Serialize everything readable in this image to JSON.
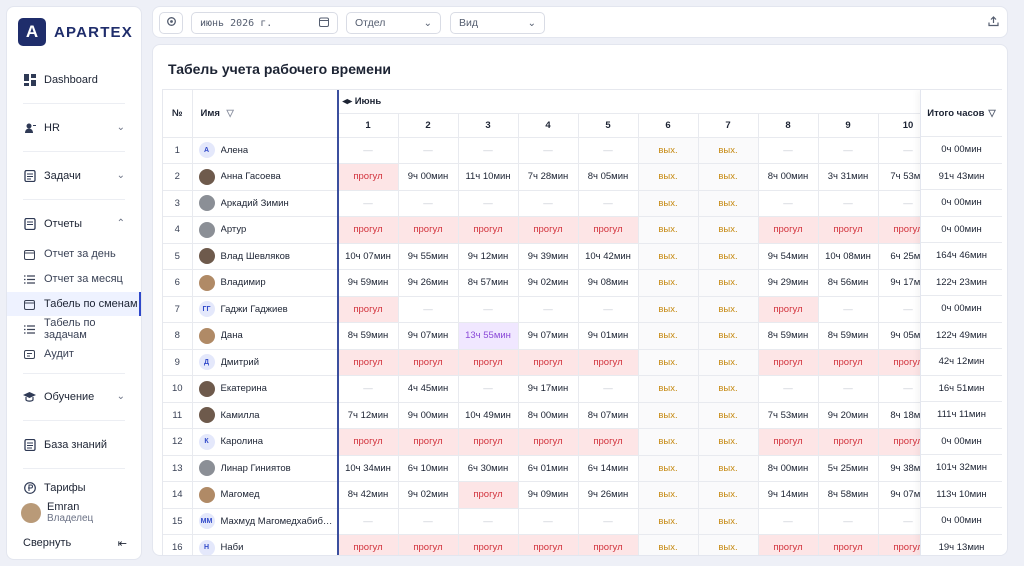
{
  "sidebar": {
    "logo": "APARTEX",
    "items": {
      "dashboard": "Dashboard",
      "hr": "HR",
      "tasks": "Задачи",
      "reports": "Отчеты",
      "report_day": "Отчет за день",
      "report_month": "Отчет за месяц",
      "timesheet_shifts": "Табель по сменам",
      "timesheet_tasks": "Табель по задачам",
      "audit": "Аудит",
      "learning": "Обучение",
      "kb": "База знаний",
      "tariffs": "Тарифы"
    },
    "user": {
      "name": "Emran",
      "role": "Владелец"
    },
    "collapse": "Свернуть"
  },
  "toolbar": {
    "date_value": "июнь 2026 г.",
    "dept_placeholder": "Отдел",
    "view_placeholder": "Вид"
  },
  "page": {
    "title": "Табель учета рабочего времени"
  },
  "table": {
    "num_header": "№",
    "name_header": "Имя",
    "month": "Июнь",
    "total_header": "Итого часов",
    "days": [
      "1",
      "2",
      "3",
      "4",
      "5",
      "6",
      "7",
      "8",
      "9",
      "10"
    ],
    "rows": [
      {
        "n": "1",
        "name": "Алена",
        "av": "А",
        "ph": "",
        "cells": [
          "—",
          "—",
          "—",
          "—",
          "—",
          "вых.",
          "вых.",
          "—",
          "—",
          "—"
        ],
        "total": "0ч 00мин"
      },
      {
        "n": "2",
        "name": "Анна Гасоева",
        "av": "",
        "ph": "ph",
        "cells": [
          "прогул",
          "9ч 00мин",
          "11ч 10мин",
          "7ч 28мин",
          "8ч 05мин",
          "вых.",
          "вых.",
          "8ч 00мин",
          "3ч 31мин",
          "7ч 53ми"
        ],
        "total": "91ч 43мин"
      },
      {
        "n": "3",
        "name": "Аркадий Зимин",
        "av": "",
        "ph": "ph2",
        "cells": [
          "—",
          "—",
          "—",
          "—",
          "—",
          "вых.",
          "вых.",
          "—",
          "—",
          "—"
        ],
        "total": "0ч 00мин"
      },
      {
        "n": "4",
        "name": "Артур",
        "av": "",
        "ph": "ph2",
        "cells": [
          "прогул",
          "прогул",
          "прогул",
          "прогул",
          "прогул",
          "вых.",
          "вых.",
          "прогул",
          "прогул",
          "прогул"
        ],
        "total": "0ч 00мин"
      },
      {
        "n": "5",
        "name": "Влад Шевляков",
        "av": "",
        "ph": "ph",
        "cells": [
          "10ч 07мин",
          "9ч 55мин",
          "9ч 12мин",
          "9ч 39мин",
          "10ч 42мин",
          "вых.",
          "вых.",
          "9ч 54мин",
          "10ч 08мин",
          "6ч 25ми"
        ],
        "total": "164ч 46мин"
      },
      {
        "n": "6",
        "name": "Владимир",
        "av": "",
        "ph": "ph3",
        "cells": [
          "9ч 59мин",
          "9ч 26мин",
          "8ч 57мин",
          "9ч 02мин",
          "9ч 08мин",
          "вых.",
          "вых.",
          "9ч 29мин",
          "8ч 56мин",
          "9ч 17ми"
        ],
        "total": "122ч 23мин"
      },
      {
        "n": "7",
        "name": "Гаджи Гаджиев",
        "av": "ГГ",
        "ph": "",
        "cells": [
          "прогул",
          "—",
          "—",
          "—",
          "—",
          "вых.",
          "вых.",
          "прогул",
          "—",
          "—"
        ],
        "total": "0ч 00мин"
      },
      {
        "n": "8",
        "name": "Дана",
        "av": "",
        "ph": "ph3",
        "cells": [
          "8ч 59мин",
          "9ч 07мин",
          "13ч 55мин",
          "9ч 07мин",
          "9ч 01мин",
          "вых.",
          "вых.",
          "8ч 59мин",
          "8ч 59мин",
          "9ч 05ми"
        ],
        "total": "122ч 49мин"
      },
      {
        "n": "9",
        "name": "Дмитрий",
        "av": "Д",
        "ph": "",
        "cells": [
          "прогул",
          "прогул",
          "прогул",
          "прогул",
          "прогул",
          "вых.",
          "вых.",
          "прогул",
          "прогул",
          "прогул"
        ],
        "total": "42ч 12мин"
      },
      {
        "n": "10",
        "name": "Екатерина",
        "av": "",
        "ph": "ph",
        "cells": [
          "—",
          "4ч 45мин",
          "—",
          "9ч 17мин",
          "—",
          "вых.",
          "вых.",
          "—",
          "—",
          "—"
        ],
        "total": "16ч 51мин"
      },
      {
        "n": "11",
        "name": "Камилла",
        "av": "",
        "ph": "ph",
        "cells": [
          "7ч 12мин",
          "9ч 00мин",
          "10ч 49мин",
          "8ч 00мин",
          "8ч 07мин",
          "вых.",
          "вых.",
          "7ч 53мин",
          "9ч 20мин",
          "8ч 18ми"
        ],
        "total": "111ч 11мин"
      },
      {
        "n": "12",
        "name": "Каролина",
        "av": "К",
        "ph": "",
        "cells": [
          "прогул",
          "прогул",
          "прогул",
          "прогул",
          "прогул",
          "вых.",
          "вых.",
          "прогул",
          "прогул",
          "прогул"
        ],
        "total": "0ч 00мин"
      },
      {
        "n": "13",
        "name": "Линар Гиниятов",
        "av": "",
        "ph": "ph2",
        "cells": [
          "10ч 34мин",
          "6ч 10мин",
          "6ч 30мин",
          "6ч 01мин",
          "6ч 14мин",
          "вых.",
          "вых.",
          "8ч 00мин",
          "5ч 25мин",
          "9ч 38ми"
        ],
        "total": "101ч 32мин"
      },
      {
        "n": "14",
        "name": "Магомед",
        "av": "",
        "ph": "ph3",
        "cells": [
          "8ч 42мин",
          "9ч 02мин",
          "прогул",
          "9ч 09мин",
          "9ч 26мин",
          "вых.",
          "вых.",
          "9ч 14мин",
          "8ч 58мин",
          "9ч 07ми"
        ],
        "total": "113ч 10мин"
      },
      {
        "n": "15",
        "name": "Махмуд Магомедхабибов",
        "av": "ММ",
        "ph": "",
        "cells": [
          "—",
          "—",
          "—",
          "—",
          "—",
          "вых.",
          "вых.",
          "—",
          "—",
          "—"
        ],
        "total": "0ч 00мин"
      },
      {
        "n": "16",
        "name": "Наби",
        "av": "Н",
        "ph": "",
        "cells": [
          "прогул",
          "прогул",
          "прогул",
          "прогул",
          "прогул",
          "вых.",
          "вых.",
          "прогул",
          "прогул",
          "прогул"
        ],
        "total": "19ч 13мин"
      }
    ],
    "highlight": {
      "row": 7,
      "col": 2
    }
  }
}
